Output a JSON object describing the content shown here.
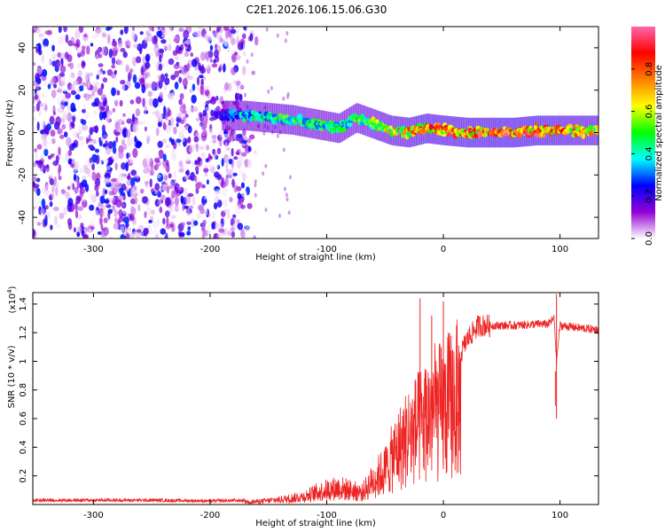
{
  "title": "C2E1.2026.106.15.06.G30",
  "chart_data": [
    {
      "type": "heatmap",
      "xlabel": "Height of straight line (km)",
      "ylabel": "Frequency (Hz)",
      "xlim": [
        -352,
        133
      ],
      "ylim": [
        -50,
        50
      ],
      "xticks": [
        -300,
        -200,
        -100,
        0,
        100
      ],
      "yticks": [
        -40,
        -20,
        0,
        20,
        40
      ],
      "colorbar": {
        "label": "Normalized spectral amplitude",
        "range": [
          0,
          1
        ],
        "ticks": [
          "0.0",
          "0.2",
          "0.4",
          "0.6",
          "0.8"
        ],
        "tick_values": [
          0.0,
          0.2,
          0.4,
          0.6,
          0.8
        ],
        "stops": [
          "#ffffff",
          "#9400d3",
          "#0000ff",
          "#00ffff",
          "#00ff00",
          "#ffff00",
          "#ff7f00",
          "#ff0000",
          "#ff66aa"
        ]
      },
      "ridge": {
        "x": [
          -190,
          -170,
          -150,
          -130,
          -110,
          -90,
          -75,
          -60,
          -45,
          -30,
          -15,
          0,
          20,
          40,
          60,
          80,
          100,
          120,
          133
        ],
        "center_hz": [
          8,
          8,
          7,
          6,
          4,
          2,
          7,
          4,
          1,
          0,
          2,
          1,
          0,
          0,
          0,
          1,
          1,
          1,
          1
        ],
        "peak_amplitude": [
          0.25,
          0.45,
          0.5,
          0.55,
          0.5,
          0.5,
          0.55,
          0.6,
          0.7,
          0.8,
          0.85,
          0.85,
          0.9,
          0.95,
          0.95,
          0.95,
          0.85,
          0.75,
          0.7
        ]
      },
      "noise_region_x": [
        -352,
        -170
      ]
    },
    {
      "type": "line",
      "xlabel": "Height of straight line (km)",
      "ylabel": "SNR (10 * v/v)",
      "y_multiplier": "(x10",
      "y_multiplier_exp": "4",
      "y_multiplier_close": ")",
      "xlim": [
        -352,
        133
      ],
      "ylim": [
        0,
        1.48
      ],
      "xticks": [
        -300,
        -200,
        -100,
        0,
        100
      ],
      "yticks": [
        0.2,
        0.4,
        0.6,
        0.8,
        1.0,
        1.2,
        1.4
      ],
      "ytick_labels": [
        "0.2",
        "0.4",
        "0.6",
        "0.8",
        "1",
        "1.2",
        "1.4"
      ],
      "color": "#ee2222",
      "series": [
        {
          "name": "SNR",
          "x": [
            -352,
            -300,
            -250,
            -200,
            -160,
            -140,
            -120,
            -110,
            -100,
            -90,
            -80,
            -70,
            -60,
            -50,
            -40,
            -30,
            -20,
            -10,
            0,
            10,
            15,
            20,
            30,
            40,
            50,
            60,
            80,
            90,
            95,
            97,
            100,
            110,
            120,
            133
          ],
          "y": [
            0.03,
            0.03,
            0.03,
            0.025,
            0.03,
            0.05,
            0.08,
            0.12,
            0.15,
            0.17,
            0.15,
            0.12,
            0.25,
            0.35,
            0.55,
            0.7,
            0.8,
            0.95,
            0.95,
            1.1,
            1.05,
            1.15,
            1.25,
            1.25,
            1.25,
            1.25,
            1.26,
            1.26,
            1.3,
            1.0,
            1.25,
            1.24,
            1.23,
            1.22
          ]
        }
      ],
      "spikes": [
        {
          "x": -20,
          "y": 1.44
        },
        {
          "x": 0,
          "y": 1.42
        },
        {
          "x": -10,
          "y": 1.32
        },
        {
          "x": 97,
          "y": 1.47
        },
        {
          "x": 96,
          "y": 0.93
        },
        {
          "x": 12,
          "y": 0.55
        }
      ]
    }
  ]
}
